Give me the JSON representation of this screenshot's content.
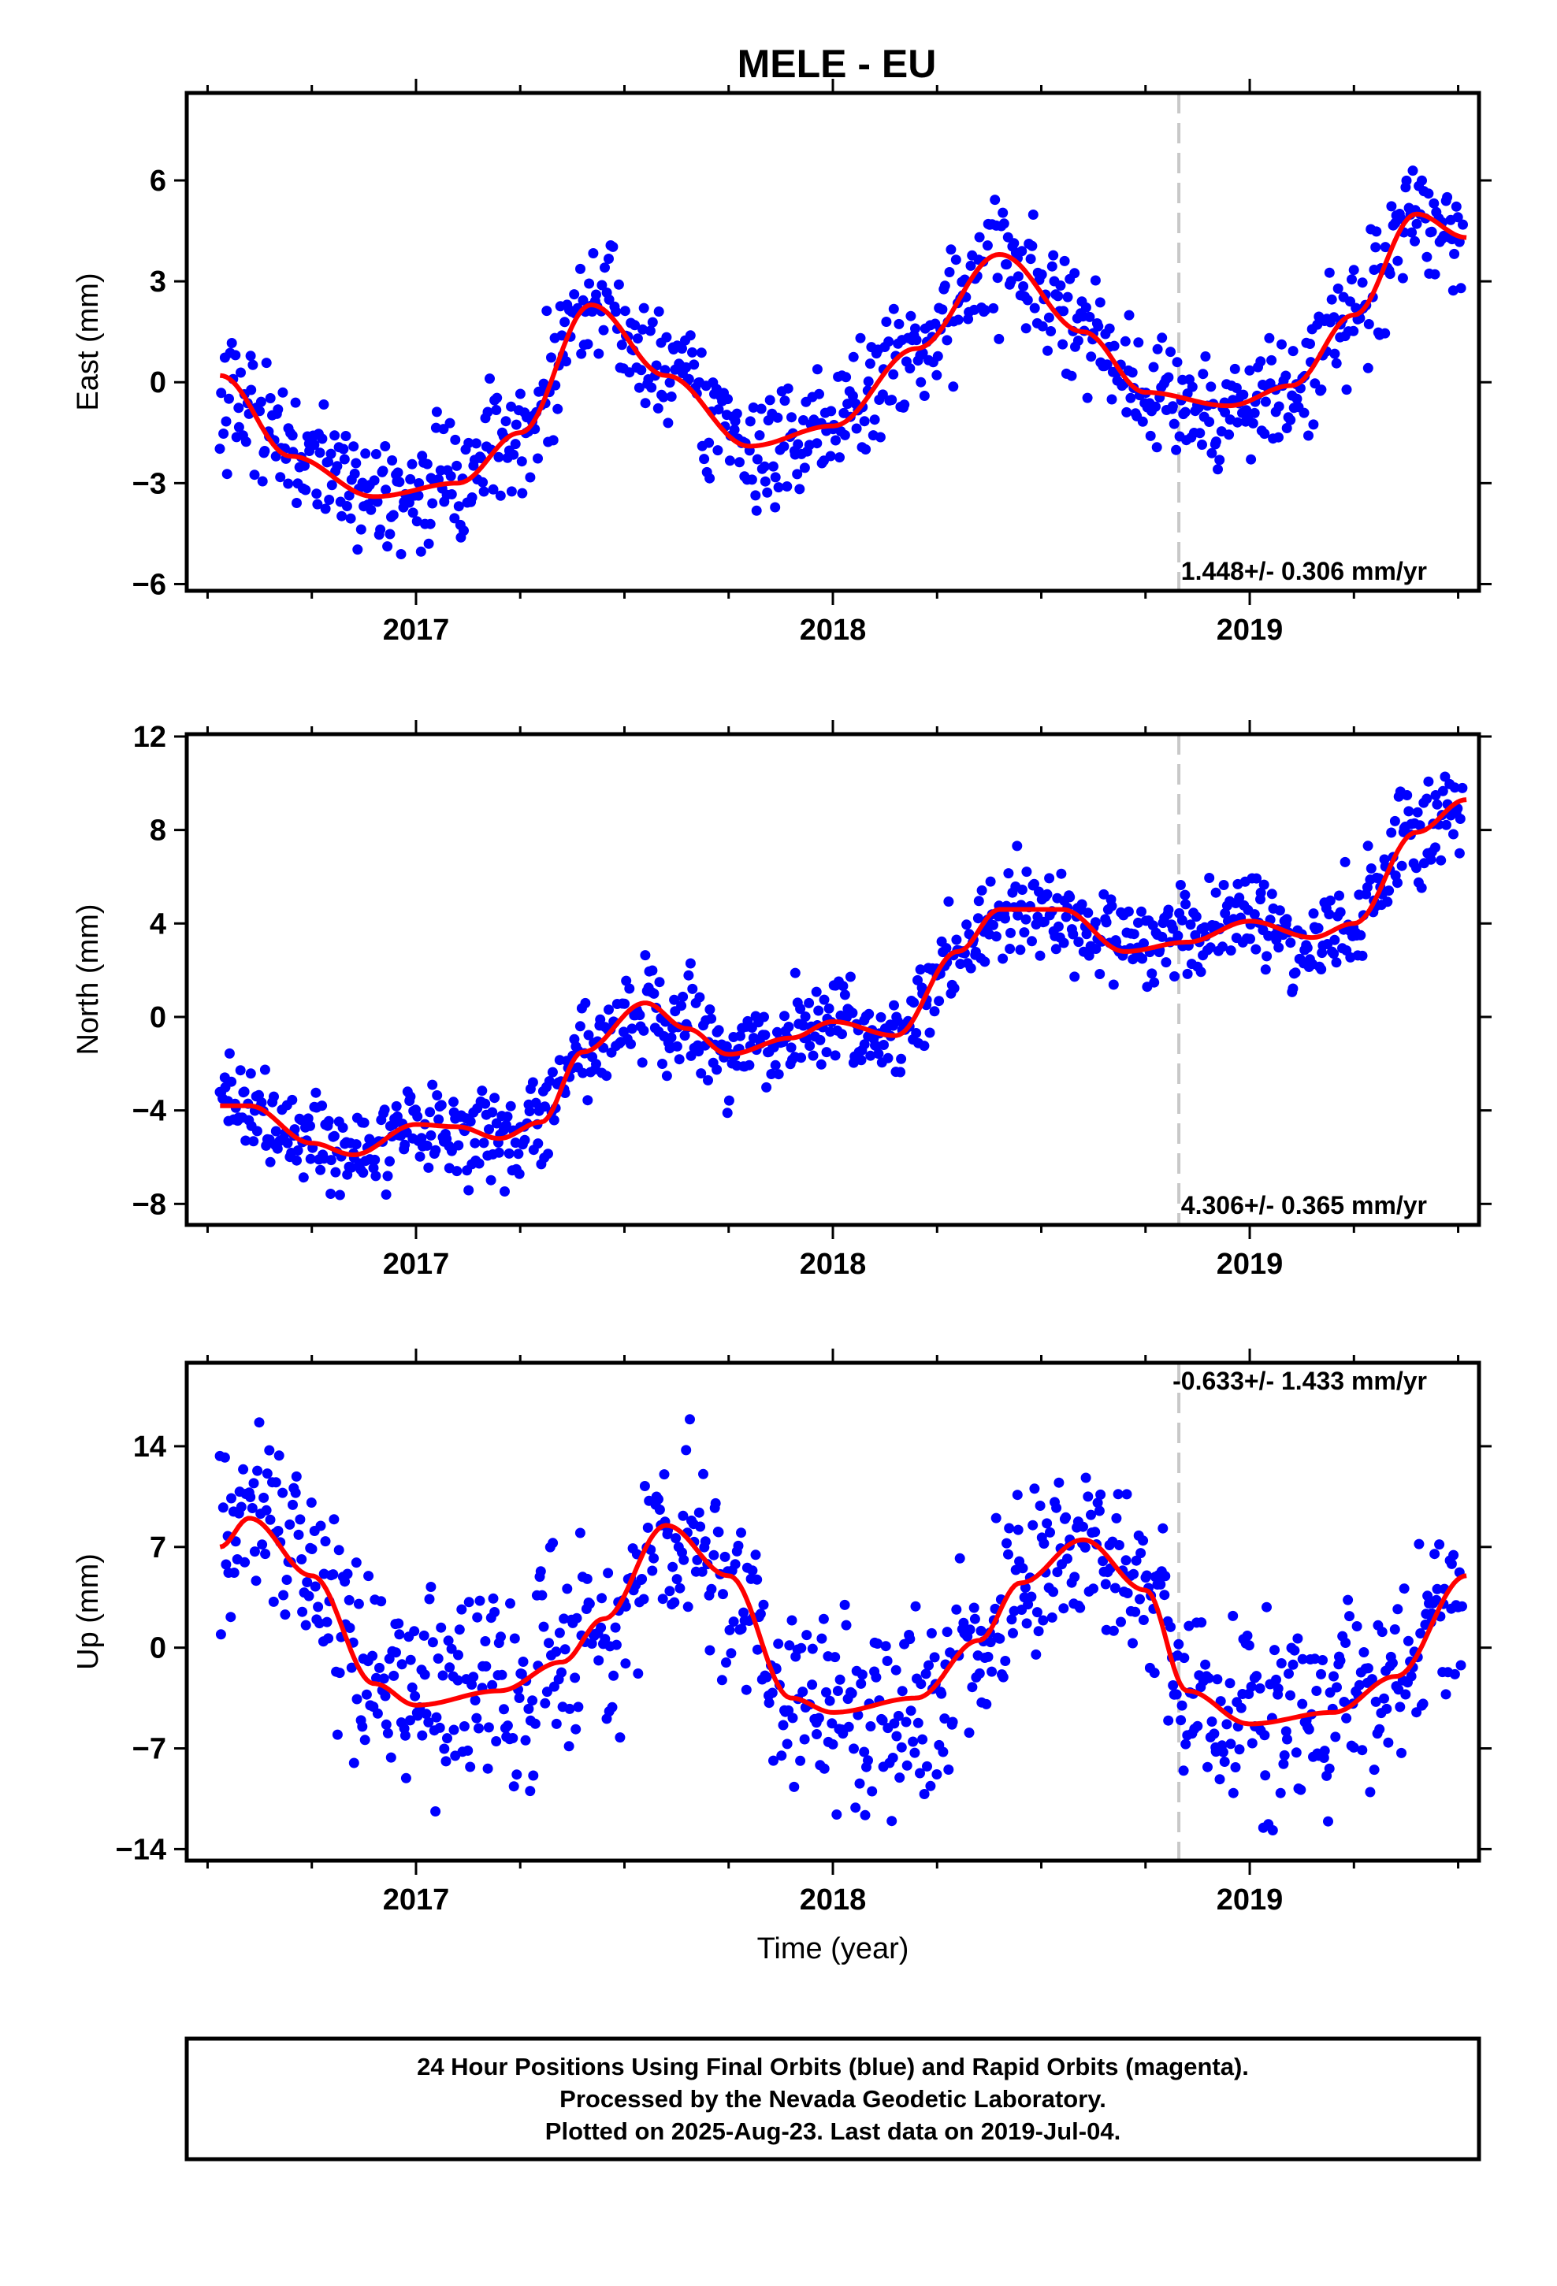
{
  "title": "MELE - EU",
  "footer": {
    "line1": "24 Hour Positions Using Final Orbits (blue) and Rapid Orbits (magenta).",
    "line2": "Processed by the Nevada Geodetic Laboratory.",
    "line3": "Plotted on 2025-Aug-23. Last data on 2019-Jul-04."
  },
  "colors": {
    "final_orbits": "#0000ff",
    "rapid_orbits": "#ff00ff",
    "model_fit": "#ff0000",
    "break_line": "#c8c8c8"
  },
  "chart_data": [
    {
      "type": "scatter",
      "ylabel": "East (mm)",
      "xlabel": "",
      "xlim": [
        2016.45,
        2019.55
      ],
      "ylim": [
        -6.2,
        8.6
      ],
      "yticks": [
        -6,
        -3,
        0,
        3,
        6
      ],
      "xticks": [
        2017,
        2018,
        2019
      ],
      "break_line_x": 2018.83,
      "rate_label": "1.448+/- 0.306 mm/yr",
      "rate_position": "bottom-right",
      "model": {
        "name": "model fit",
        "x": [
          2016.53,
          2016.7,
          2016.9,
          2017.1,
          2017.25,
          2017.42,
          2017.6,
          2017.8,
          2018.0,
          2018.2,
          2018.4,
          2018.6,
          2018.75,
          2018.95,
          2019.1,
          2019.25,
          2019.4,
          2019.52
        ],
        "y": [
          0.2,
          -2.2,
          -3.4,
          -3.0,
          -1.5,
          2.3,
          0.2,
          -1.9,
          -1.3,
          1.0,
          3.8,
          1.5,
          -0.3,
          -0.7,
          -0.1,
          2.0,
          5.0,
          4.3
        ]
      },
      "scatter": {
        "name": "daily positions",
        "x_start": 2016.53,
        "x_end": 2019.51,
        "count": 830,
        "scatter_sd": 0.9
      }
    },
    {
      "type": "scatter",
      "ylabel": "North (mm)",
      "xlabel": "",
      "xlim": [
        2016.45,
        2019.55
      ],
      "ylim": [
        -8.9,
        12.1
      ],
      "yticks": [
        -8,
        -4,
        0,
        4,
        8,
        12
      ],
      "xticks": [
        2017,
        2018,
        2019
      ],
      "break_line_x": 2018.83,
      "rate_label": "4.306+/- 0.365 mm/yr",
      "rate_position": "bottom-right",
      "model": {
        "name": "model fit",
        "x": [
          2016.53,
          2016.6,
          2016.75,
          2016.85,
          2017.0,
          2017.1,
          2017.2,
          2017.3,
          2017.4,
          2017.55,
          2017.65,
          2017.75,
          2017.9,
          2018.0,
          2018.15,
          2018.3,
          2018.4,
          2018.55,
          2018.7,
          2018.85,
          2019.0,
          2019.15,
          2019.25,
          2019.4,
          2019.52
        ],
        "y": [
          -3.8,
          -3.8,
          -5.4,
          -5.9,
          -4.6,
          -4.7,
          -5.2,
          -4.5,
          -1.5,
          0.6,
          -0.5,
          -1.6,
          -0.9,
          -0.2,
          -0.8,
          2.8,
          4.6,
          4.6,
          2.8,
          3.2,
          4.1,
          3.4,
          4.0,
          7.9,
          9.3
        ]
      },
      "scatter": {
        "name": "daily positions",
        "x_start": 2016.53,
        "x_end": 2019.51,
        "count": 860,
        "scatter_sd": 1.0
      }
    },
    {
      "type": "scatter",
      "ylabel": "Up (mm)",
      "xlabel": "Time (year)",
      "xlim": [
        2016.45,
        2019.55
      ],
      "ylim": [
        -14.8,
        19.8
      ],
      "yticks": [
        -14,
        -7,
        0,
        7,
        14
      ],
      "xticks": [
        2017,
        2018,
        2019
      ],
      "break_line_x": 2018.83,
      "rate_label": "-0.633+/- 1.433 mm/yr",
      "rate_position": "top-right",
      "model": {
        "name": "model fit",
        "x": [
          2016.53,
          2016.6,
          2016.75,
          2016.9,
          2017.0,
          2017.2,
          2017.35,
          2017.45,
          2017.6,
          2017.75,
          2017.9,
          2018.0,
          2018.2,
          2018.35,
          2018.45,
          2018.6,
          2018.75,
          2018.85,
          2019.0,
          2019.2,
          2019.35,
          2019.52
        ],
        "y": [
          7.0,
          9.0,
          5.0,
          -2.5,
          -4.0,
          -3.0,
          -1.0,
          2.0,
          8.5,
          5.0,
          -3.5,
          -4.5,
          -3.5,
          0.5,
          4.5,
          7.5,
          4.0,
          -3.0,
          -5.3,
          -4.5,
          -2.0,
          5.0
        ]
      },
      "scatter": {
        "name": "daily positions",
        "x_start": 2016.53,
        "x_end": 2019.51,
        "count": 860,
        "scatter_sd": 3.4
      }
    }
  ]
}
